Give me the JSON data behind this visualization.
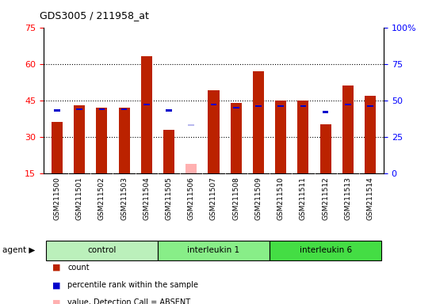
{
  "title": "GDS3005 / 211958_at",
  "samples": [
    "GSM211500",
    "GSM211501",
    "GSM211502",
    "GSM211503",
    "GSM211504",
    "GSM211505",
    "GSM211506",
    "GSM211507",
    "GSM211508",
    "GSM211509",
    "GSM211510",
    "GSM211511",
    "GSM211512",
    "GSM211513",
    "GSM211514"
  ],
  "count_values": [
    36,
    43,
    42,
    42,
    63,
    33,
    null,
    49,
    44,
    57,
    45,
    45,
    35,
    51,
    47
  ],
  "rank_values": [
    43,
    44,
    44,
    44,
    47,
    43,
    null,
    47,
    45,
    46,
    46,
    46,
    42,
    47,
    46
  ],
  "absent_count": [
    null,
    null,
    null,
    null,
    null,
    null,
    19,
    null,
    null,
    null,
    null,
    null,
    null,
    null,
    null
  ],
  "absent_rank": [
    null,
    null,
    null,
    null,
    null,
    null,
    33,
    null,
    null,
    null,
    null,
    null,
    null,
    null,
    null
  ],
  "groups": [
    {
      "label": "control",
      "start": 0,
      "end": 4,
      "color": "#bbf0bb"
    },
    {
      "label": "interleukin 1",
      "start": 5,
      "end": 9,
      "color": "#88ee88"
    },
    {
      "label": "interleukin 6",
      "start": 10,
      "end": 14,
      "color": "#44dd44"
    }
  ],
  "ylim_left": [
    15,
    75
  ],
  "ylim_right": [
    0,
    100
  ],
  "yticks_left": [
    15,
    30,
    45,
    60,
    75
  ],
  "yticks_right": [
    0,
    25,
    50,
    75,
    100
  ],
  "bar_color": "#bb2200",
  "rank_color": "#0000cc",
  "absent_bar_color": "#ffb0b0",
  "absent_rank_color": "#b8b8ee",
  "bar_width": 0.5,
  "rank_sq_size": 0.8,
  "bg_color": "#ffffff",
  "tick_bg_color": "#cccccc"
}
